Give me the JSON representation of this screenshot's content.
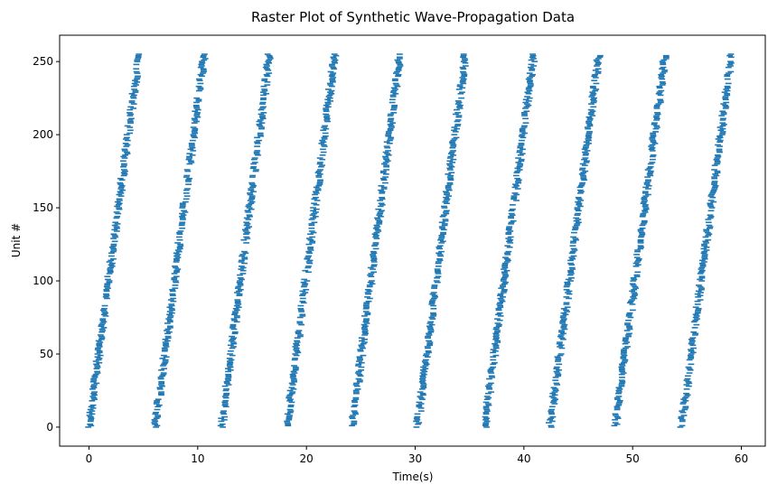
{
  "chart_data": {
    "type": "scatter",
    "marker": "hline",
    "title": "Raster Plot of Synthetic Wave-Propagation Data",
    "xlabel": "Time(s)",
    "ylabel": "Unit #",
    "xlim": [
      -2.7,
      62.2
    ],
    "ylim": [
      -13,
      268
    ],
    "xticks": [
      0,
      10,
      20,
      30,
      40,
      50,
      60
    ],
    "yticks": [
      0,
      50,
      100,
      150,
      200,
      250
    ],
    "grid": false,
    "color": "#1f77b4",
    "units": 256,
    "waves": [
      {
        "start": 0.0,
        "end": 4.6
      },
      {
        "start": 6.1,
        "end": 10.6
      },
      {
        "start": 12.2,
        "end": 16.6
      },
      {
        "start": 18.2,
        "end": 22.6
      },
      {
        "start": 24.2,
        "end": 28.6
      },
      {
        "start": 30.2,
        "end": 34.6
      },
      {
        "start": 36.4,
        "end": 40.9
      },
      {
        "start": 42.4,
        "end": 46.9
      },
      {
        "start": 48.4,
        "end": 53.0
      },
      {
        "start": 54.5,
        "end": 59.1
      }
    ]
  }
}
